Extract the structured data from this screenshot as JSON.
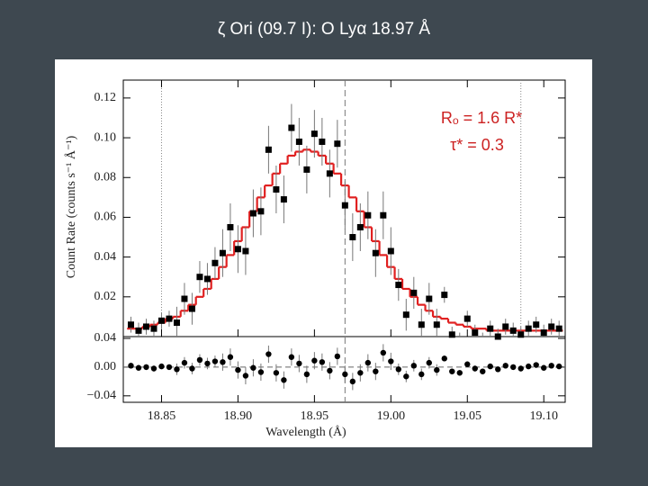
{
  "chart_data": {
    "type": "spectrum",
    "title": "ζ Ori (09.7 I): O Lyα 18.97 Å",
    "xlabel": "Wavelength (Å)",
    "ylabel": "Count Rate (counts s⁻¹ Å⁻¹)",
    "annotations": [
      "Rₒ = 1.6 R*",
      "τ* = 0.3"
    ],
    "x": [
      18.83,
      18.835,
      18.84,
      18.845,
      18.85,
      18.855,
      18.86,
      18.865,
      18.87,
      18.875,
      18.88,
      18.885,
      18.89,
      18.895,
      18.9,
      18.905,
      18.91,
      18.915,
      18.92,
      18.925,
      18.93,
      18.935,
      18.94,
      18.945,
      18.95,
      18.955,
      18.96,
      18.965,
      18.97,
      18.975,
      18.98,
      18.985,
      18.99,
      18.995,
      19.0,
      19.005,
      19.01,
      19.015,
      19.02,
      19.025,
      19.03,
      19.035,
      19.04,
      19.045,
      19.05,
      19.055,
      19.06,
      19.065,
      19.07,
      19.075,
      19.08,
      19.085,
      19.09,
      19.095,
      19.1,
      19.105,
      19.11
    ],
    "values": [
      0.006,
      0.003,
      0.005,
      0.004,
      0.008,
      0.009,
      0.007,
      0.019,
      0.014,
      0.03,
      0.029,
      0.037,
      0.042,
      0.055,
      0.044,
      0.043,
      0.062,
      0.063,
      0.094,
      0.074,
      0.069,
      0.105,
      0.098,
      0.084,
      0.102,
      0.098,
      0.082,
      0.097,
      0.066,
      0.05,
      0.055,
      0.061,
      0.042,
      0.061,
      0.043,
      0.026,
      0.011,
      0.022,
      0.006,
      0.019,
      0.006,
      0.021,
      0.001,
      -0.002,
      0.009,
      0.002,
      -0.002,
      0.004,
      0.0,
      0.005,
      0.003,
      0.001,
      0.004,
      0.006,
      0.002,
      0.005,
      0.004
    ],
    "errors": [
      0.004,
      0.004,
      0.004,
      0.004,
      0.004,
      0.004,
      0.008,
      0.008,
      0.008,
      0.008,
      0.008,
      0.008,
      0.012,
      0.012,
      0.012,
      0.012,
      0.012,
      0.012,
      0.012,
      0.012,
      0.012,
      0.012,
      0.012,
      0.012,
      0.012,
      0.012,
      0.012,
      0.012,
      0.012,
      0.012,
      0.012,
      0.012,
      0.012,
      0.012,
      0.012,
      0.008,
      0.008,
      0.008,
      0.008,
      0.008,
      0.008,
      0.004,
      0.004,
      0.004,
      0.004,
      0.004,
      0.004,
      0.004,
      0.004,
      0.004,
      0.004,
      0.004,
      0.004,
      0.004,
      0.004,
      0.004,
      0.004
    ],
    "model": [
      0.004,
      0.004,
      0.005,
      0.006,
      0.007,
      0.009,
      0.01,
      0.013,
      0.016,
      0.02,
      0.024,
      0.029,
      0.035,
      0.041,
      0.048,
      0.055,
      0.063,
      0.07,
      0.076,
      0.082,
      0.087,
      0.091,
      0.093,
      0.094,
      0.093,
      0.091,
      0.087,
      0.082,
      0.076,
      0.07,
      0.063,
      0.055,
      0.048,
      0.041,
      0.035,
      0.029,
      0.024,
      0.02,
      0.016,
      0.013,
      0.01,
      0.009,
      0.007,
      0.006,
      0.005,
      0.004,
      0.004,
      0.003,
      0.003,
      0.003,
      0.003,
      0.003,
      0.003,
      0.003,
      0.003,
      0.003,
      0.003
    ],
    "residuals": [
      0.002,
      -0.001,
      0.0,
      -0.002,
      0.001,
      0.0,
      -0.003,
      0.006,
      -0.002,
      0.01,
      0.005,
      0.008,
      0.007,
      0.014,
      -0.004,
      -0.012,
      -0.001,
      -0.007,
      0.018,
      -0.008,
      -0.018,
      0.014,
      0.005,
      -0.01,
      0.009,
      0.007,
      -0.005,
      0.015,
      -0.01,
      -0.02,
      -0.008,
      0.006,
      -0.006,
      0.02,
      0.008,
      -0.003,
      -0.013,
      0.002,
      -0.01,
      0.006,
      -0.004,
      0.012,
      -0.006,
      -0.008,
      0.004,
      -0.002,
      -0.006,
      0.001,
      -0.003,
      0.002,
      0.0,
      -0.002,
      0.001,
      0.003,
      -0.001,
      0.002,
      0.001
    ],
    "bin_width": 0.005,
    "color": "#000000",
    "model_color": "#e02020",
    "xlim": [
      18.825,
      19.114
    ],
    "xticks": [
      18.85,
      {
        "value": 18.9,
        "label": "18.90"
      },
      18.95,
      {
        "value": 19.0,
        "label": "19.00"
      },
      19.05,
      {
        "value": 19.1,
        "label": "19.10"
      }
    ],
    "ylim": [
      0,
      0.129
    ],
    "yticks": [
      0.02,
      0.04,
      0.06,
      0.08,
      {
        "value": 0.1,
        "label": "0.10"
      },
      0.12
    ],
    "residual_ylim": [
      -0.049,
      0.0425
    ],
    "residual_yticks": [
      {
        "value": -0.04,
        "label": "−0.04"
      },
      {
        "value": 0,
        "label": "0.00"
      },
      0.04
    ],
    "dashed_lines": [
      18.97
    ],
    "dotted_lines": [
      18.85,
      19.085
    ]
  }
}
